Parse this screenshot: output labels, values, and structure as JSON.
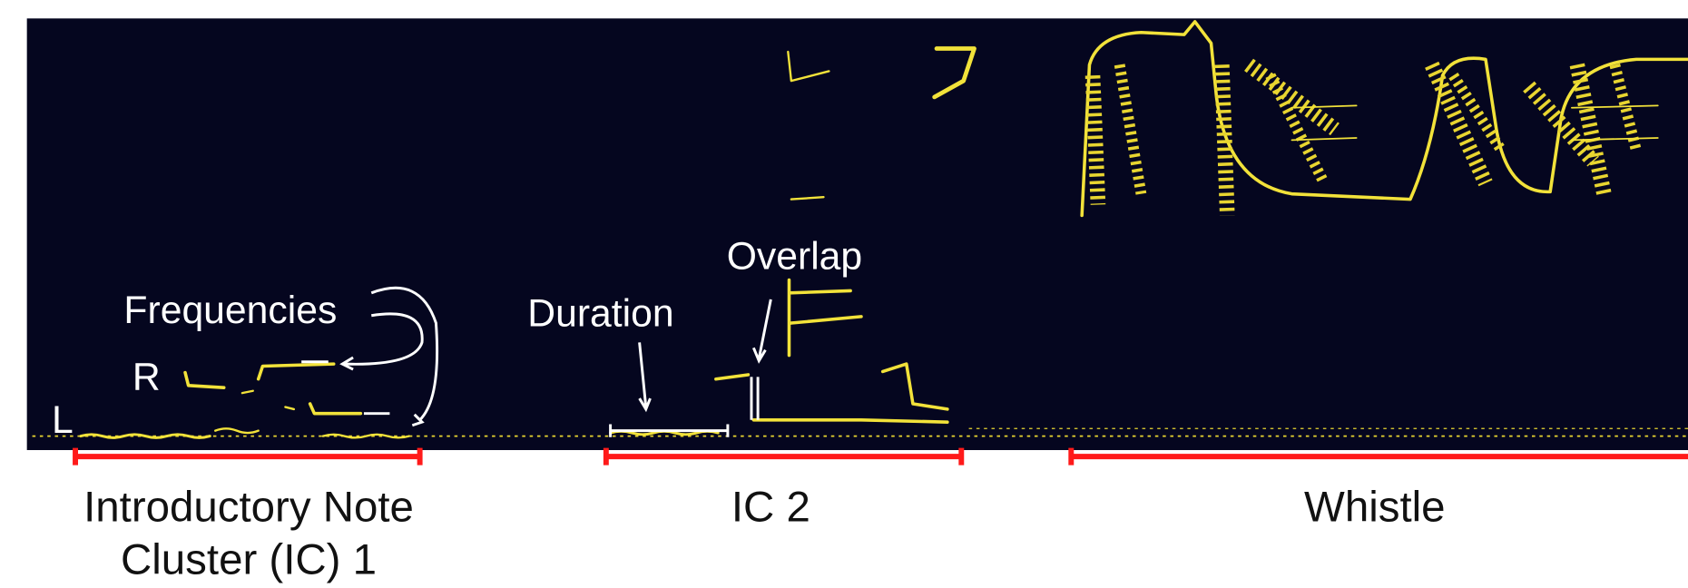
{
  "annotations": {
    "frequencies": "Frequencies",
    "r": "R",
    "l": "L",
    "duration": "Duration",
    "overlap": "Overlap"
  },
  "segments": [
    {
      "lines": [
        "Introductory Note",
        "Cluster (IC) 1"
      ]
    },
    {
      "lines": [
        "IC 2"
      ]
    },
    {
      "lines": [
        "Whistle"
      ]
    }
  ]
}
